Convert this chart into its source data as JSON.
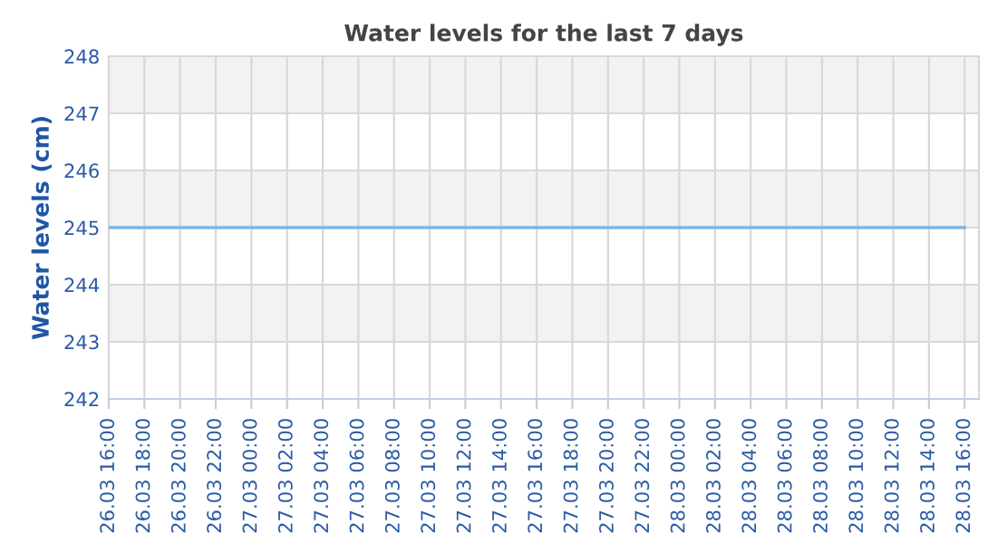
{
  "chart_data": {
    "type": "line",
    "title": "Water levels for the last 7 days",
    "ylabel": "Water levels (cm)",
    "categories": [
      "26.03 16:00",
      "26.03 18:00",
      "26.03 20:00",
      "26.03 22:00",
      "27.03 00:00",
      "27.03 02:00",
      "27.03 04:00",
      "27.03 06:00",
      "27.03 08:00",
      "27.03 10:00",
      "27.03 12:00",
      "27.03 14:00",
      "27.03 16:00",
      "27.03 18:00",
      "27.03 20:00",
      "27.03 22:00",
      "28.03 00:00",
      "28.03 02:00",
      "28.03 04:00",
      "28.03 06:00",
      "28.03 08:00",
      "28.03 10:00",
      "28.03 12:00",
      "28.03 14:00",
      "28.03 16:00"
    ],
    "series": [
      {
        "color": "#7cb5ec",
        "values": [
          245,
          245,
          245,
          245,
          245,
          245,
          245,
          245,
          245,
          245,
          245,
          245,
          245,
          245,
          245,
          245,
          245,
          245,
          245,
          245,
          245,
          245,
          245,
          245,
          245
        ]
      }
    ],
    "ylim": [
      242,
      248
    ],
    "yticks": [
      242,
      243,
      244,
      245,
      246,
      247,
      248
    ],
    "bands": [
      {
        "axis": "y",
        "from": 243,
        "to": 244,
        "color": "#f2f2f2"
      },
      {
        "axis": "y",
        "from": 245,
        "to": 246,
        "color": "#f2f2f2"
      },
      {
        "axis": "y",
        "from": 247,
        "to": 248,
        "color": "#f2f2f2"
      }
    ],
    "grid": true,
    "marker": "none",
    "line_style": "solid"
  }
}
